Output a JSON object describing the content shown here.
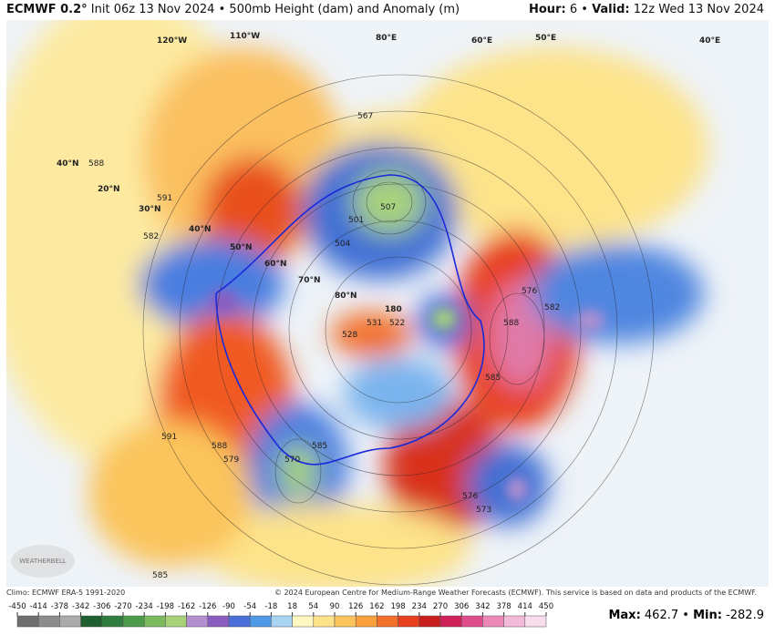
{
  "header": {
    "model": "ECMWF 0.2°",
    "description": "Init 06z 13 Nov 2024",
    "separator": "•",
    "field": "500mb Height (dam) and Anomaly (m)",
    "hour_label": "Hour:",
    "hour": "6",
    "valid_label": "Valid:",
    "valid": "12z Wed 13 Nov 2024"
  },
  "map": {
    "latitude_labels": [
      "20°N",
      "30°N",
      "40°N",
      "40°N",
      "50°N",
      "60°N",
      "70°N",
      "80°N"
    ],
    "longitude_labels": [
      "120°W",
      "110°W",
      "80°E",
      "60°E",
      "50°E",
      "40°E",
      "180"
    ],
    "contour_labels": [
      "588",
      "591",
      "582",
      "567",
      "501",
      "507",
      "504",
      "528",
      "531",
      "522",
      "588",
      "582",
      "576",
      "585",
      "591",
      "588",
      "579",
      "585",
      "570",
      "576",
      "573",
      "585"
    ]
  },
  "footer": {
    "climo": "Climo: ECMWF ERA-5 1991-2020",
    "copyright": "© 2024 European Centre for Medium-Range Weather Forecasts (ECMWF). This service is based on data and products of the ECMWF.",
    "max_label": "Max:",
    "max": "462.7",
    "min_label": "Min:",
    "min": "-282.9",
    "logo": "WEATHERBELL"
  },
  "colorbar": {
    "ticks": [
      -450,
      -414,
      -378,
      -342,
      -306,
      -270,
      -234,
      -198,
      -162,
      -126,
      -90,
      -54,
      -18,
      18,
      54,
      90,
      126,
      162,
      198,
      234,
      270,
      306,
      342,
      378,
      414,
      450
    ],
    "colors": [
      "#6e6e6e",
      "#8c8c8c",
      "#aaaaaa",
      "#1f5f2f",
      "#2e7d3e",
      "#4c9a4a",
      "#7cba5e",
      "#a8d27a",
      "#b38fd0",
      "#8a5cc0",
      "#4a6fd8",
      "#4f9ae8",
      "#a8d4f4",
      "#fff7c0",
      "#fde38a",
      "#fbc45c",
      "#f9a03c",
      "#f2702a",
      "#e8401e",
      "#c81e1e",
      "#d0205a",
      "#e04c8c",
      "#ec88b8",
      "#f4b8d8",
      "#f8dcec"
    ]
  }
}
